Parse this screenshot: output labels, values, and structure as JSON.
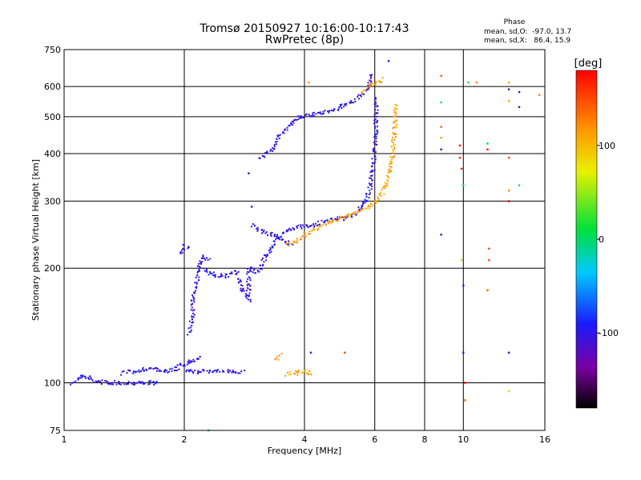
{
  "chart_data": {
    "type": "scatter",
    "title": "Tromsø 20150927 10:16:00-10:17:43",
    "subtitle": "RwPretec (8p)",
    "xlabel": "Frequency [MHz]",
    "ylabel": "Stationary phase Virtual Height [km]",
    "x_scale": "log",
    "y_scale": "log",
    "xlim": [
      1,
      16
    ],
    "ylim": [
      75,
      750
    ],
    "x_ticks": [
      1,
      2,
      4,
      6,
      8,
      10,
      16
    ],
    "y_ticks": [
      75,
      100,
      200,
      300,
      400,
      500,
      600,
      750
    ],
    "grid": true,
    "stats": {
      "heading": "Phase",
      "line1": "mean, sd,O:  -97.0, 13.7",
      "line2": "mean, sd,X:   86.4, 15.9"
    },
    "colorbar": {
      "unit_label": "[deg]",
      "range": [
        -180,
        180
      ],
      "ticks": [
        100,
        0,
        -100
      ]
    },
    "series": [
      {
        "mode": "O",
        "phase_deg": -100,
        "segments": [
          [
            [
              1.05,
              100
            ],
            [
              1.1,
              104
            ],
            [
              1.15,
              103
            ],
            [
              1.2,
              101
            ],
            [
              1.3,
              100
            ],
            [
              1.4,
              100
            ],
            [
              1.5,
              100
            ],
            [
              1.6,
              100
            ],
            [
              1.7,
              100
            ],
            [
              1.72,
              101
            ]
          ],
          [
            [
              1.4,
              106
            ],
            [
              1.5,
              107
            ],
            [
              1.6,
              109
            ],
            [
              1.7,
              108
            ],
            [
              1.8,
              107
            ],
            [
              1.9,
              109
            ],
            [
              2.0,
              112
            ],
            [
              2.1,
              114
            ],
            [
              2.2,
              117
            ]
          ],
          [
            [
              2.05,
              135
            ],
            [
              2.1,
              150
            ],
            [
              2.1,
              170
            ],
            [
              2.15,
              185
            ],
            [
              2.18,
              200
            ],
            [
              2.2,
              210
            ],
            [
              2.25,
              215
            ],
            [
              2.3,
              210
            ]
          ],
          [
            [
              1.95,
              218
            ],
            [
              2.0,
              228
            ],
            [
              2.05,
              225
            ]
          ],
          [
            [
              2.2,
              200
            ],
            [
              2.3,
              195
            ],
            [
              2.4,
              192
            ],
            [
              2.5,
              190
            ],
            [
              2.6,
              192
            ],
            [
              2.7,
              195
            ],
            [
              2.8,
              175
            ],
            [
              2.9,
              165
            ],
            [
              2.9,
              198
            ]
          ],
          [
            [
              2.9,
              200
            ],
            [
              3.0,
              195
            ],
            [
              3.1,
              200
            ],
            [
              3.2,
              215
            ],
            [
              3.3,
              225
            ],
            [
              3.4,
              240
            ],
            [
              3.5,
              245
            ],
            [
              3.6,
              250
            ],
            [
              3.8,
              255
            ],
            [
              4.0,
              258
            ],
            [
              4.2,
              260
            ],
            [
              4.5,
              265
            ],
            [
              4.8,
              270
            ],
            [
              5.0,
              270
            ]
          ],
          [
            [
              5.0,
              270
            ],
            [
              5.3,
              275
            ],
            [
              5.5,
              285
            ],
            [
              5.7,
              300
            ],
            [
              5.85,
              330
            ],
            [
              5.95,
              370
            ],
            [
              6.0,
              420
            ],
            [
              6.05,
              480
            ],
            [
              6.05,
              520
            ],
            [
              6.0,
              560
            ]
          ],
          [
            [
              3.1,
              390
            ],
            [
              3.3,
              410
            ],
            [
              3.5,
              450
            ],
            [
              3.7,
              480
            ],
            [
              3.9,
              500
            ],
            [
              4.2,
              505
            ],
            [
              4.5,
              515
            ],
            [
              4.8,
              525
            ],
            [
              5.0,
              535
            ],
            [
              5.3,
              550
            ],
            [
              5.6,
              575
            ],
            [
              5.8,
              600
            ],
            [
              5.9,
              640
            ]
          ],
          [
            [
              2.95,
              260
            ],
            [
              3.1,
              250
            ],
            [
              3.3,
              245
            ],
            [
              3.5,
              240
            ],
            [
              3.7,
              230
            ]
          ],
          [
            [
              2.0,
              107
            ],
            [
              2.2,
              107
            ],
            [
              2.4,
              107
            ],
            [
              2.6,
              107
            ],
            [
              2.8,
              107
            ]
          ]
        ]
      },
      {
        "mode": "X",
        "phase_deg": 110,
        "segments": [
          [
            [
              3.6,
              230
            ],
            [
              3.8,
              235
            ],
            [
              4.0,
              245
            ],
            [
              4.3,
              255
            ],
            [
              4.6,
              265
            ],
            [
              5.0,
              272
            ],
            [
              5.4,
              280
            ],
            [
              5.8,
              290
            ],
            [
              6.1,
              300
            ],
            [
              6.4,
              330
            ],
            [
              6.6,
              380
            ],
            [
              6.7,
              430
            ],
            [
              6.75,
              480
            ],
            [
              6.75,
              540
            ]
          ],
          [
            [
              5.6,
              580
            ],
            [
              5.8,
              600
            ],
            [
              6.0,
              610
            ],
            [
              6.2,
              620
            ],
            [
              6.3,
              625
            ]
          ],
          [
            [
              3.6,
              105
            ],
            [
              3.8,
              106
            ],
            [
              4.0,
              107
            ],
            [
              4.2,
              106
            ]
          ],
          [
            [
              3.4,
              115
            ],
            [
              3.5,
              118
            ]
          ]
        ]
      }
    ],
    "isolated_points": [
      {
        "x": 2.3,
        "y": 75,
        "phase_deg": 0
      },
      {
        "x": 2.9,
        "y": 355,
        "phase_deg": -100
      },
      {
        "x": 2.95,
        "y": 290,
        "phase_deg": -100
      },
      {
        "x": 4.15,
        "y": 120,
        "phase_deg": -100
      },
      {
        "x": 5.05,
        "y": 120,
        "phase_deg": 150
      },
      {
        "x": 6.5,
        "y": 700,
        "phase_deg": -100
      },
      {
        "x": 4.1,
        "y": 615,
        "phase_deg": 120
      },
      {
        "x": 8.8,
        "y": 640,
        "phase_deg": 140
      },
      {
        "x": 8.8,
        "y": 545,
        "phase_deg": 0
      },
      {
        "x": 8.8,
        "y": 470,
        "phase_deg": 140
      },
      {
        "x": 8.8,
        "y": 440,
        "phase_deg": 110
      },
      {
        "x": 8.8,
        "y": 410,
        "phase_deg": -100
      },
      {
        "x": 8.8,
        "y": 245,
        "phase_deg": -100
      },
      {
        "x": 9.8,
        "y": 420,
        "phase_deg": 170
      },
      {
        "x": 9.8,
        "y": 390,
        "phase_deg": 160
      },
      {
        "x": 9.9,
        "y": 365,
        "phase_deg": 170
      },
      {
        "x": 10.0,
        "y": 330,
        "phase_deg": 0
      },
      {
        "x": 9.9,
        "y": 210,
        "phase_deg": 90
      },
      {
        "x": 10.0,
        "y": 180,
        "phase_deg": -100
      },
      {
        "x": 10.0,
        "y": 120,
        "phase_deg": -100
      },
      {
        "x": 10.1,
        "y": 100,
        "phase_deg": 180
      },
      {
        "x": 10.1,
        "y": 90,
        "phase_deg": 140
      },
      {
        "x": 10.3,
        "y": 615,
        "phase_deg": 0
      },
      {
        "x": 10.8,
        "y": 615,
        "phase_deg": 120
      },
      {
        "x": 11.5,
        "y": 425,
        "phase_deg": 0
      },
      {
        "x": 11.5,
        "y": 410,
        "phase_deg": 170
      },
      {
        "x": 11.6,
        "y": 225,
        "phase_deg": 150
      },
      {
        "x": 11.6,
        "y": 210,
        "phase_deg": 150
      },
      {
        "x": 11.5,
        "y": 175,
        "phase_deg": 140
      },
      {
        "x": 13.0,
        "y": 615,
        "phase_deg": 110
      },
      {
        "x": 13.0,
        "y": 590,
        "phase_deg": -100
      },
      {
        "x": 13.0,
        "y": 550,
        "phase_deg": 110
      },
      {
        "x": 13.0,
        "y": 390,
        "phase_deg": 150
      },
      {
        "x": 13.0,
        "y": 320,
        "phase_deg": 120
      },
      {
        "x": 13.0,
        "y": 300,
        "phase_deg": 180
      },
      {
        "x": 13.0,
        "y": 120,
        "phase_deg": -100
      },
      {
        "x": 13.0,
        "y": 95,
        "phase_deg": 60
      },
      {
        "x": 13.8,
        "y": 580,
        "phase_deg": -100
      },
      {
        "x": 13.8,
        "y": 530,
        "phase_deg": -100
      },
      {
        "x": 13.8,
        "y": 330,
        "phase_deg": 0
      },
      {
        "x": 15.5,
        "y": 570,
        "phase_deg": 130
      }
    ]
  }
}
